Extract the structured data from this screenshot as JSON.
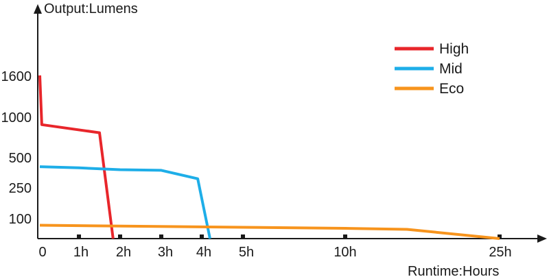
{
  "chart_data": {
    "type": "line",
    "ylabel": "Output:Lumens",
    "xlabel": "Runtime:Hours",
    "x_scale": "categorical-runtime",
    "x_ticks": [
      "0",
      "1h",
      "2h",
      "3h",
      "4h",
      "5h",
      "10h",
      "25h"
    ],
    "y_ticks": [
      "100",
      "250",
      "500",
      "1000",
      "1600"
    ],
    "legend_position": "top-right",
    "grid": false,
    "series": [
      {
        "name": "High",
        "color": "#e8262b",
        "points": [
          {
            "x": 0,
            "y": 1600
          },
          {
            "x": 0.05,
            "y": 900
          },
          {
            "x": 1.5,
            "y": 800
          },
          {
            "x": 1.83,
            "y": 0
          }
        ]
      },
      {
        "name": "Mid",
        "color": "#1eaee8",
        "points": [
          {
            "x": 0,
            "y": 420
          },
          {
            "x": 1.0,
            "y": 410
          },
          {
            "x": 2.0,
            "y": 395
          },
          {
            "x": 3.0,
            "y": 390
          },
          {
            "x": 3.9,
            "y": 320
          },
          {
            "x": 4.2,
            "y": 0
          }
        ]
      },
      {
        "name": "Eco",
        "color": "#f7941d",
        "points": [
          {
            "x": 0,
            "y": 65
          },
          {
            "x": 5.0,
            "y": 55
          },
          {
            "x": 10.0,
            "y": 50
          },
          {
            "x": 16.0,
            "y": 45
          },
          {
            "x": 25.0,
            "y": 0
          }
        ]
      }
    ]
  }
}
